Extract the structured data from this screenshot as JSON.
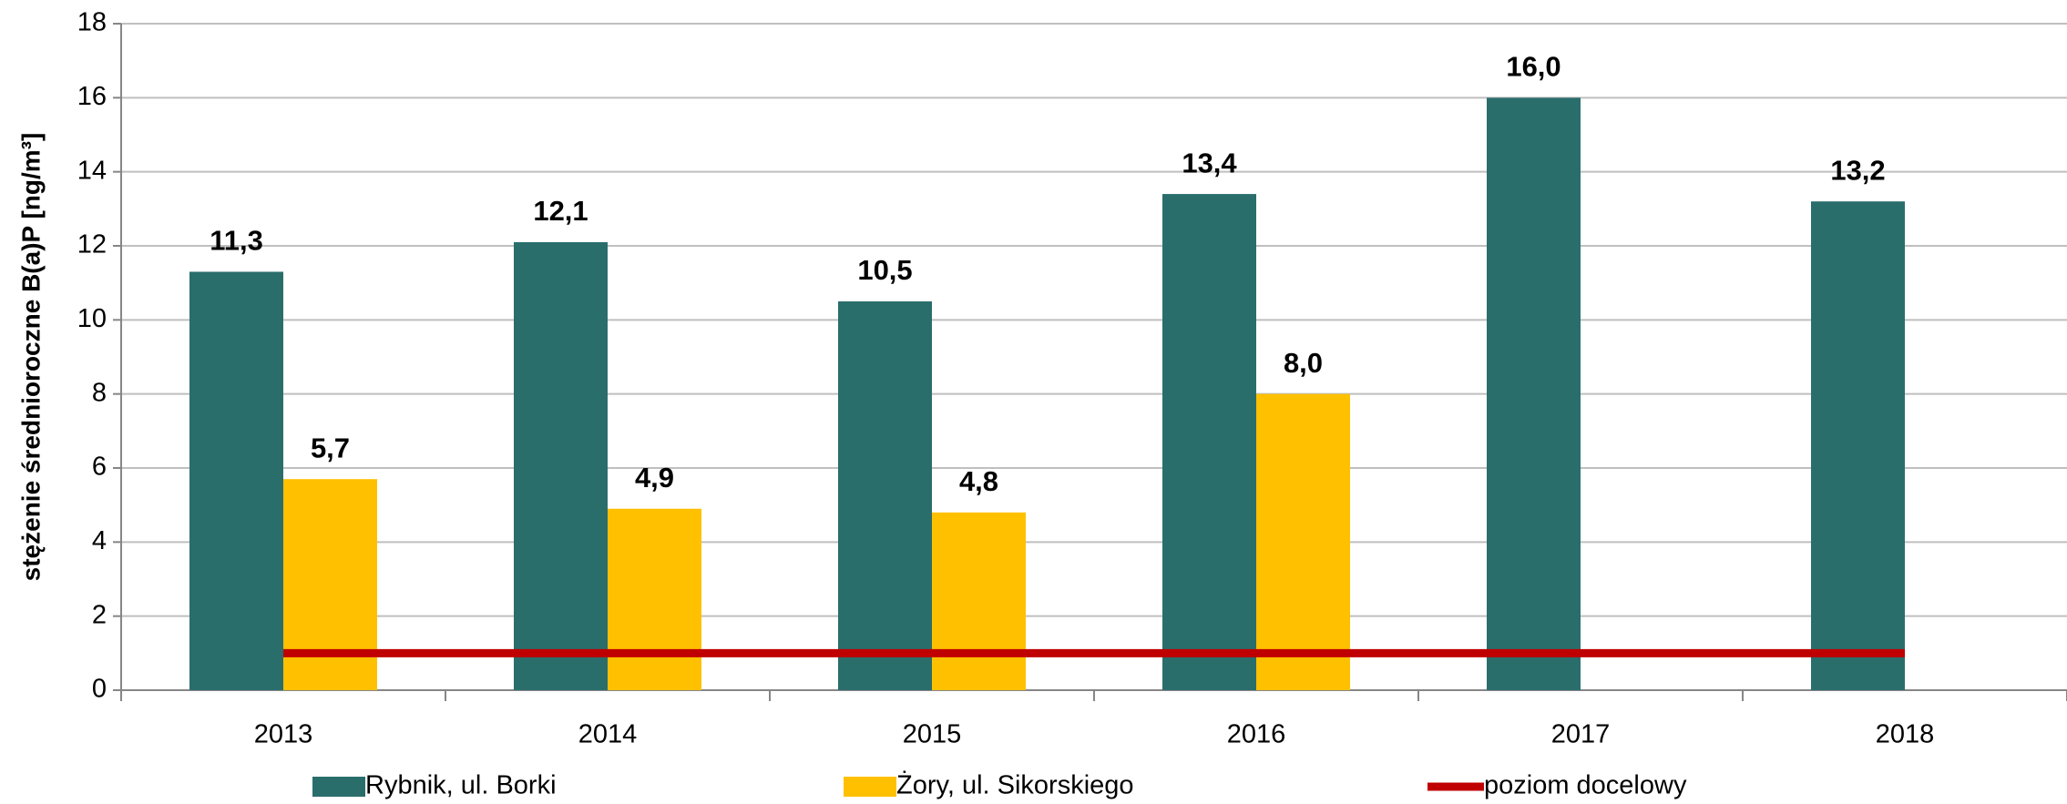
{
  "chart_data": {
    "type": "bar",
    "y_label": "stężenie średnioroczne B(a)P [ng/m³]",
    "categories": [
      "2013",
      "2014",
      "2015",
      "2016",
      "2017",
      "2018"
    ],
    "series": [
      {
        "name": "Rybnik, ul. Borki",
        "color": "#2a6e6c",
        "values": [
          11.3,
          12.1,
          10.5,
          13.4,
          16.0,
          13.2
        ],
        "value_labels": [
          "11,3",
          "12,1",
          "10,5",
          "13,4",
          "16,0",
          "13,2"
        ]
      },
      {
        "name": "Żory, ul. Sikorskiego",
        "color": "#ffc000",
        "values": [
          5.7,
          4.9,
          4.8,
          8.0,
          null,
          null
        ],
        "value_labels": [
          "5,7",
          "4,9",
          "4,8",
          "8,0",
          null,
          null
        ]
      },
      {
        "name": "poziom docelowy",
        "type": "line",
        "color": "#c00000",
        "values": [
          1,
          1,
          1,
          1,
          1,
          1
        ]
      }
    ],
    "ylim": [
      0,
      18
    ],
    "yticks": [
      0,
      2,
      4,
      6,
      8,
      10,
      12,
      14,
      16,
      18
    ],
    "grid": true,
    "legend": "bottom"
  }
}
